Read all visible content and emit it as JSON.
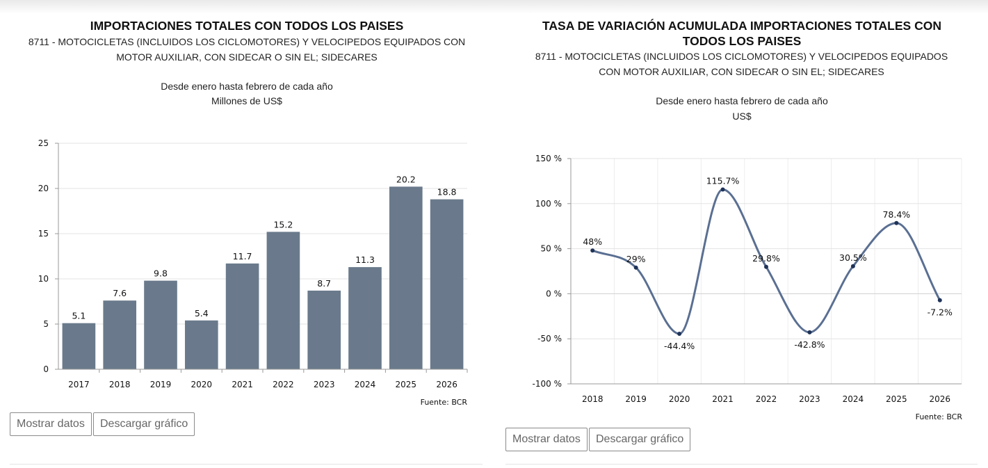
{
  "left": {
    "title": "IMPORTACIONES TOTALES CON TODOS LOS PAISES",
    "subtitle": "8711 - MOTOCICLETAS (INCLUIDOS LOS CICLOMOTORES) Y VELOCIPEDOS EQUIPADOS CON MOTOR AUXILIAR, CON SIDECAR O SIN EL; SIDECARES",
    "period": "Desde enero hasta febrero de cada año",
    "unit": "Millones de US$",
    "source": "Fuente: BCR",
    "buttons": {
      "show_data": "Mostrar datos",
      "download": "Descargar gráfico"
    },
    "chart_data": {
      "type": "bar",
      "categories": [
        "2017",
        "2018",
        "2019",
        "2020",
        "2021",
        "2022",
        "2023",
        "2024",
        "2025",
        "2026"
      ],
      "values": [
        5.1,
        7.6,
        9.8,
        5.4,
        11.7,
        15.2,
        8.7,
        11.3,
        20.2,
        18.8
      ],
      "value_labels": [
        "5.1",
        "7.6",
        "9.8",
        "5.4",
        "11.7",
        "15.2",
        "8.7",
        "11.3",
        "20.2",
        "18.8"
      ],
      "ylim": [
        0,
        25
      ],
      "yticks": [
        0,
        5,
        10,
        15,
        20,
        25
      ],
      "ytick_labels": [
        "0",
        "5",
        "10",
        "15",
        "20",
        "25"
      ],
      "bar_color": "#6a7a8c",
      "grid": true
    }
  },
  "right": {
    "title": "TASA DE VARIACIÓN ACUMULADA IMPORTACIONES TOTALES CON TODOS LOS PAISES",
    "subtitle": "8711 - MOTOCICLETAS (INCLUIDOS LOS CICLOMOTORES) Y VELOCIPEDOS EQUIPADOS CON MOTOR AUXILIAR, CON SIDECAR O SIN EL; SIDECARES",
    "period": "Desde enero hasta febrero de cada año",
    "unit": "US$",
    "source": "Fuente: BCR",
    "buttons": {
      "show_data": "Mostrar datos",
      "download": "Descargar gráfico"
    },
    "chart_data": {
      "type": "line",
      "x": [
        "2018",
        "2019",
        "2020",
        "2021",
        "2022",
        "2023",
        "2024",
        "2025",
        "2026"
      ],
      "values": [
        48,
        29,
        -44.4,
        115.7,
        29.8,
        -42.8,
        30.5,
        78.4,
        -7.2
      ],
      "value_labels": [
        "48%",
        "29%",
        "-44.4%",
        "115.7%",
        "29.8%",
        "-42.8%",
        "30.5%",
        "78.4%",
        "-7.2%"
      ],
      "ylim": [
        -100,
        150
      ],
      "yticks": [
        -100,
        -50,
        0,
        50,
        100,
        150
      ],
      "ytick_labels": [
        "-100 %",
        "-50 %",
        "0 %",
        "50 %",
        "100 %",
        "150 %"
      ],
      "line_color": "#5a6f92",
      "grid": true
    }
  }
}
